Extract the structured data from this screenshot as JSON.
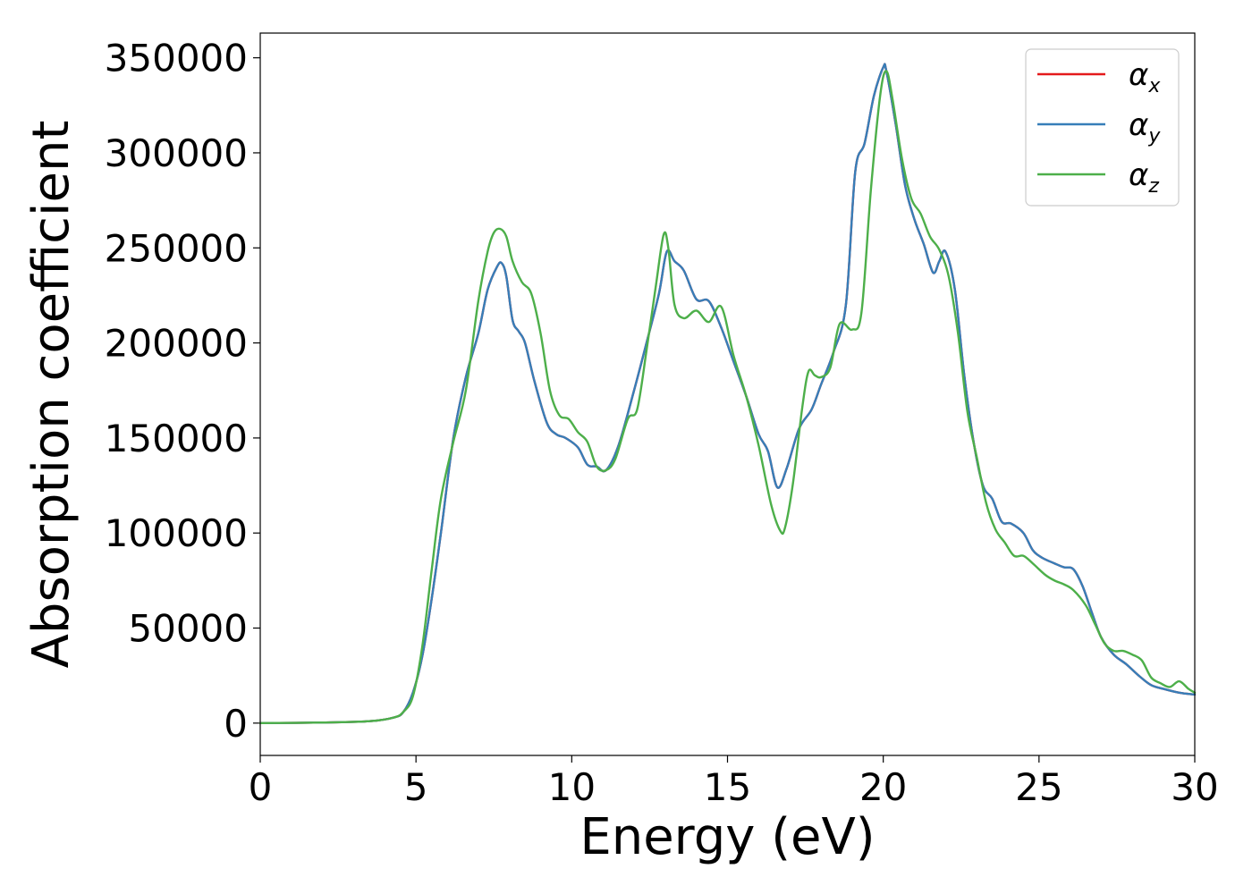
{
  "chart_data": {
    "type": "line",
    "title": "",
    "xlabel": "Energy (eV)",
    "ylabel": "Absorption coefficient",
    "xlim": [
      0,
      30
    ],
    "ylim": [
      -17000,
      363000
    ],
    "xticks": [
      0,
      5,
      10,
      15,
      20,
      25,
      30
    ],
    "yticks": [
      0,
      50000,
      100000,
      150000,
      200000,
      250000,
      300000,
      350000
    ],
    "grid": false,
    "legend_position": "top-right",
    "series": [
      {
        "name": "α_x",
        "symbol": "α",
        "subscript": "x",
        "color": "#e41a1c",
        "x": [
          0,
          2,
          3.5,
          4.3,
          4.6,
          4.9,
          5.2,
          5.5,
          5.8,
          6.2,
          6.6,
          7.0,
          7.3,
          7.6,
          7.75,
          7.9,
          8.1,
          8.3,
          8.5,
          8.8,
          9.2,
          9.5,
          9.8,
          10.2,
          10.5,
          10.8,
          11.1,
          11.5,
          12.0,
          12.4,
          12.8,
          13.05,
          13.3,
          13.6,
          14.0,
          14.4,
          14.8,
          15.2,
          15.6,
          16.0,
          16.3,
          16.6,
          16.9,
          17.3,
          17.7,
          18.0,
          18.4,
          18.8,
          19.1,
          19.4,
          19.7,
          20.0,
          20.1,
          20.4,
          20.7,
          21.0,
          21.3,
          21.6,
          21.8,
          22.0,
          22.3,
          22.6,
          22.9,
          23.2,
          23.5,
          23.8,
          24.1,
          24.5,
          24.8,
          25.1,
          25.5,
          25.8,
          26.1,
          26.4,
          26.7,
          27.0,
          27.4,
          27.8,
          28.2,
          28.6,
          29.0,
          29.5,
          30.0
        ],
        "y": [
          0,
          300,
          1000,
          3000,
          6000,
          16000,
          35000,
          65000,
          100000,
          150000,
          182000,
          205000,
          228000,
          240000,
          242000,
          235000,
          212000,
          206000,
          200000,
          180000,
          158000,
          152000,
          150000,
          145000,
          136000,
          135000,
          133000,
          146000,
          175000,
          200000,
          226000,
          248000,
          243000,
          238000,
          223000,
          222000,
          208000,
          190000,
          172000,
          152000,
          143000,
          124000,
          134000,
          155000,
          165000,
          178000,
          195000,
          220000,
          290000,
          305000,
          330000,
          345000,
          343000,
          315000,
          283000,
          265000,
          252000,
          237000,
          243000,
          248000,
          228000,
          183000,
          148000,
          125000,
          118000,
          106000,
          105000,
          100000,
          91000,
          87000,
          84000,
          82000,
          81000,
          72000,
          58000,
          45000,
          36000,
          31000,
          25000,
          20000,
          18000,
          16000,
          15000
        ]
      },
      {
        "name": "α_y",
        "symbol": "α",
        "subscript": "y",
        "color": "#377eb8",
        "x": [
          0,
          2,
          3.5,
          4.3,
          4.6,
          4.9,
          5.2,
          5.5,
          5.8,
          6.2,
          6.6,
          7.0,
          7.3,
          7.6,
          7.75,
          7.9,
          8.1,
          8.3,
          8.5,
          8.8,
          9.2,
          9.5,
          9.8,
          10.2,
          10.5,
          10.8,
          11.1,
          11.5,
          12.0,
          12.4,
          12.8,
          13.05,
          13.3,
          13.6,
          14.0,
          14.4,
          14.8,
          15.2,
          15.6,
          16.0,
          16.3,
          16.6,
          16.9,
          17.3,
          17.7,
          18.0,
          18.4,
          18.8,
          19.1,
          19.4,
          19.7,
          20.0,
          20.1,
          20.4,
          20.7,
          21.0,
          21.3,
          21.6,
          21.8,
          22.0,
          22.3,
          22.6,
          22.9,
          23.2,
          23.5,
          23.8,
          24.1,
          24.5,
          24.8,
          25.1,
          25.5,
          25.8,
          26.1,
          26.4,
          26.7,
          27.0,
          27.4,
          27.8,
          28.2,
          28.6,
          29.0,
          29.5,
          30.0
        ],
        "y": [
          0,
          300,
          1000,
          3000,
          6000,
          16000,
          35000,
          65000,
          100000,
          150000,
          182000,
          205000,
          228000,
          240000,
          242000,
          235000,
          212000,
          206000,
          200000,
          180000,
          158000,
          152000,
          150000,
          145000,
          136000,
          135000,
          133000,
          146000,
          175000,
          200000,
          226000,
          248000,
          243000,
          238000,
          223000,
          222000,
          208000,
          190000,
          172000,
          152000,
          143000,
          124000,
          134000,
          155000,
          165000,
          178000,
          195000,
          220000,
          290000,
          305000,
          330000,
          345000,
          343000,
          315000,
          283000,
          265000,
          252000,
          237000,
          243000,
          248000,
          228000,
          183000,
          148000,
          125000,
          118000,
          106000,
          105000,
          100000,
          91000,
          87000,
          84000,
          82000,
          81000,
          72000,
          58000,
          45000,
          36000,
          31000,
          25000,
          20000,
          18000,
          16000,
          15000
        ]
      },
      {
        "name": "α_z",
        "symbol": "α",
        "subscript": "z",
        "color": "#4daf4a",
        "x": [
          0,
          2,
          3.5,
          4.3,
          4.6,
          4.9,
          5.2,
          5.5,
          5.8,
          6.2,
          6.6,
          7.0,
          7.3,
          7.5,
          7.7,
          7.9,
          8.1,
          8.4,
          8.7,
          9.0,
          9.3,
          9.6,
          9.9,
          10.2,
          10.5,
          10.8,
          11.1,
          11.4,
          11.8,
          12.1,
          12.4,
          12.7,
          12.95,
          13.1,
          13.3,
          13.6,
          14.0,
          14.4,
          14.8,
          15.2,
          15.6,
          16.0,
          16.4,
          16.7,
          16.85,
          17.1,
          17.4,
          17.6,
          17.8,
          18.0,
          18.3,
          18.6,
          19.0,
          19.3,
          19.6,
          19.9,
          20.1,
          20.3,
          20.6,
          20.9,
          21.2,
          21.5,
          21.8,
          22.1,
          22.4,
          22.7,
          23.0,
          23.3,
          23.6,
          23.9,
          24.2,
          24.5,
          24.8,
          25.2,
          25.5,
          25.8,
          26.1,
          26.5,
          26.8,
          27.1,
          27.4,
          27.7,
          28.0,
          28.3,
          28.6,
          28.9,
          29.2,
          29.5,
          29.8,
          30.0
        ],
        "y": [
          0,
          300,
          1000,
          3000,
          6000,
          14000,
          40000,
          80000,
          118000,
          148000,
          175000,
          222000,
          248000,
          258000,
          260000,
          256000,
          243000,
          232000,
          226000,
          205000,
          175000,
          162000,
          160000,
          153000,
          148000,
          135000,
          133000,
          139000,
          160000,
          165000,
          196000,
          230000,
          257000,
          250000,
          220000,
          213000,
          217000,
          211000,
          219000,
          193000,
          172000,
          146000,
          115000,
          101000,
          103000,
          126000,
          166000,
          185000,
          183000,
          182000,
          187000,
          210000,
          207000,
          216000,
          280000,
          330000,
          343000,
          328000,
          297000,
          276000,
          268000,
          256000,
          249000,
          235000,
          205000,
          164000,
          140000,
          116000,
          102000,
          95000,
          88000,
          88000,
          84000,
          78000,
          75000,
          73000,
          70000,
          62000,
          52000,
          42000,
          38000,
          38000,
          36000,
          33000,
          24000,
          21000,
          19000,
          22000,
          18000,
          16000
        ]
      }
    ]
  }
}
